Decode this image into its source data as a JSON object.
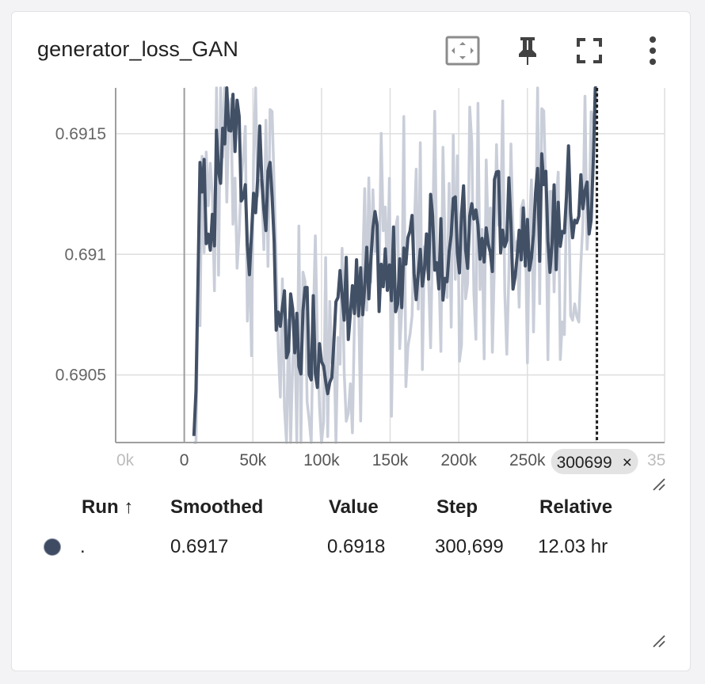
{
  "card": {
    "title": "generator_loss_GAN"
  },
  "toolbar": {
    "fit_icon": "fit-to-data-icon",
    "pin_icon": "pin-icon",
    "fullscreen_icon": "fullscreen-icon",
    "more_icon": "more-vert-icon"
  },
  "chart_data": {
    "type": "line",
    "xlim": [
      -50000,
      350000
    ],
    "ylim": [
      0.69022,
      0.69169
    ],
    "x_ticks": [
      "0",
      "50k",
      "100k",
      "150k",
      "200k",
      "250k"
    ],
    "x_tick_values": [
      0,
      50000,
      100000,
      150000,
      200000,
      250000
    ],
    "x_edge_left": "0k",
    "x_edge_right": "35",
    "y_ticks": [
      "0.6905",
      "0.691",
      "0.6915"
    ],
    "y_tick_values": [
      0.6905,
      0.691,
      0.6915
    ],
    "grid": true,
    "hover_step": 300699,
    "hover_label": "300699",
    "series": [
      {
        "name": ".",
        "color": "#425066",
        "raw_color": "#c9ced9",
        "x": [
          7000,
          12000,
          20000,
          28000,
          32000,
          40000,
          48000,
          55000,
          62000,
          67000,
          72000,
          80000,
          90000,
          100000,
          110000,
          120000,
          130000,
          140000,
          150000,
          160000,
          170000,
          180000,
          190000,
          200000,
          210000,
          220000,
          230000,
          240000,
          250000,
          260000,
          270000,
          280000,
          290000,
          296000,
          300699
        ],
        "smoothed": [
          0.69022,
          0.69132,
          0.69115,
          0.6915,
          0.69165,
          0.6914,
          0.69108,
          0.69138,
          0.6912,
          0.6909,
          0.69065,
          0.6906,
          0.69072,
          0.69062,
          0.69068,
          0.69085,
          0.69075,
          0.69098,
          0.69085,
          0.69102,
          0.69095,
          0.69115,
          0.691,
          0.69105,
          0.69112,
          0.691,
          0.6912,
          0.69105,
          0.69115,
          0.6912,
          0.69108,
          0.69125,
          0.69118,
          0.6912,
          0.6917
        ]
      }
    ]
  },
  "table": {
    "headers": {
      "run": "Run ↑",
      "smoothed": "Smoothed",
      "value": "Value",
      "step": "Step",
      "relative": "Relative"
    },
    "rows": [
      {
        "run": ".",
        "smoothed": "0.6917",
        "value": "0.6918",
        "step": "300,699",
        "relative": "12.03 hr",
        "color": "#3f4b63"
      }
    ]
  }
}
